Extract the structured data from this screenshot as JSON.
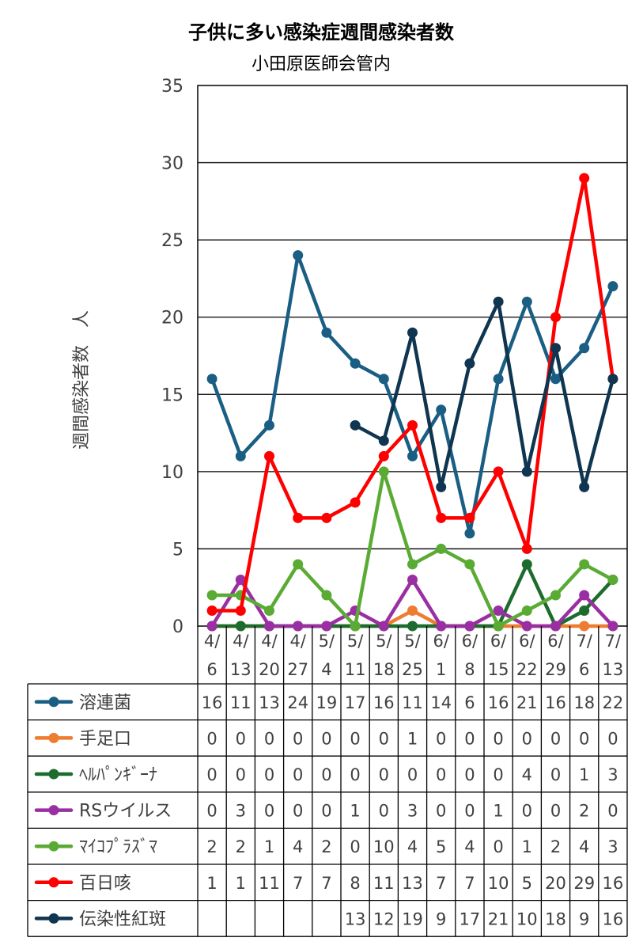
{
  "chart_data": {
    "type": "line",
    "title": "子供に多い感染症週間感染者数",
    "subtitle": "小田原医師会管内",
    "ylabel": "週間感染者数　人",
    "xlabel": "",
    "ylim": [
      0,
      35
    ],
    "yticks": [
      0,
      5,
      10,
      15,
      20,
      25,
      30,
      35
    ],
    "grid": true,
    "legend": "data-table",
    "categories": [
      [
        "4/",
        "6"
      ],
      [
        "4/",
        "13"
      ],
      [
        "4/",
        "20"
      ],
      [
        "4/",
        "27"
      ],
      [
        "5/",
        "4"
      ],
      [
        "5/",
        "11"
      ],
      [
        "5/",
        "18"
      ],
      [
        "5/",
        "25"
      ],
      [
        "6/",
        "1"
      ],
      [
        "6/",
        "8"
      ],
      [
        "6/",
        "15"
      ],
      [
        "6/",
        "22"
      ],
      [
        "6/",
        "29"
      ],
      [
        "7/",
        "6"
      ],
      [
        "7/",
        "13"
      ]
    ],
    "series": [
      {
        "name": "溶連菌",
        "color": "#1b5e84",
        "values": [
          16,
          11,
          13,
          24,
          19,
          17,
          16,
          11,
          14,
          6,
          16,
          21,
          16,
          18,
          22
        ]
      },
      {
        "name": "手足口",
        "color": "#ed7d31",
        "values": [
          0,
          0,
          0,
          0,
          0,
          0,
          0,
          1,
          0,
          0,
          0,
          0,
          0,
          0,
          0
        ]
      },
      {
        "name": "ﾍﾙﾊﾟﾝｷﾞｰﾅ",
        "color": "#1e6b2e",
        "values": [
          0,
          0,
          0,
          0,
          0,
          0,
          0,
          0,
          0,
          0,
          0,
          4,
          0,
          1,
          3
        ]
      },
      {
        "name": "RSウイルス",
        "color": "#9a2fa3",
        "values": [
          0,
          3,
          0,
          0,
          0,
          1,
          0,
          3,
          0,
          0,
          1,
          0,
          0,
          2,
          0
        ]
      },
      {
        "name": "ﾏｲｺﾌﾟﾗｽﾞﾏ",
        "color": "#5aab34",
        "values": [
          2,
          2,
          1,
          4,
          2,
          0,
          10,
          4,
          5,
          4,
          0,
          1,
          2,
          4,
          3
        ]
      },
      {
        "name": "百日咳",
        "color": "#ff0000",
        "values": [
          1,
          1,
          11,
          7,
          7,
          8,
          11,
          13,
          7,
          7,
          10,
          5,
          20,
          29,
          16
        ]
      },
      {
        "name": "伝染性紅斑",
        "color": "#0f3550",
        "values": [
          null,
          null,
          null,
          null,
          null,
          13,
          12,
          19,
          9,
          17,
          21,
          10,
          18,
          9,
          16
        ]
      }
    ]
  }
}
